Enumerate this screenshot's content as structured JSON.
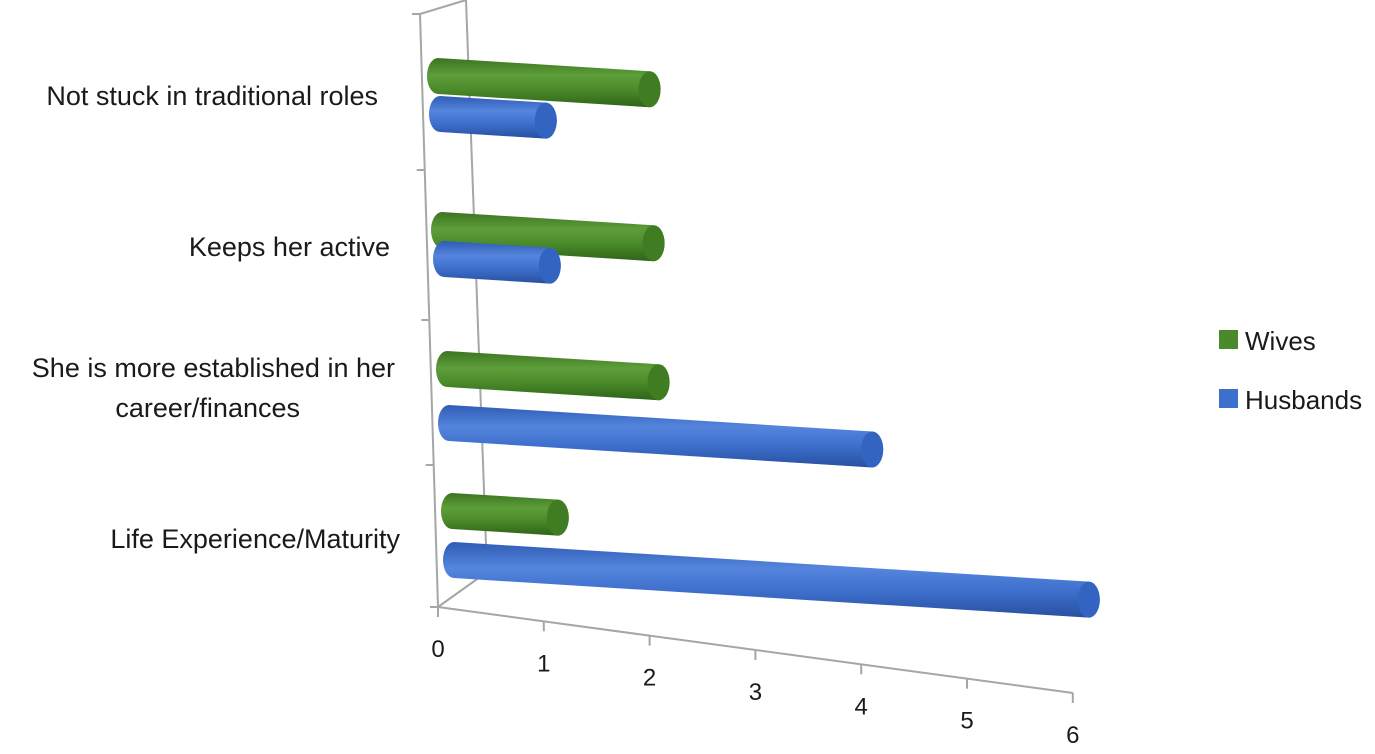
{
  "chart_data": {
    "type": "bar",
    "orientation": "horizontal",
    "style": "3d-cylinder",
    "title": "",
    "xlabel": "",
    "ylabel": "",
    "categories": [
      "Not stuck in traditional roles",
      "Keeps her active",
      "She is more established in her career/finances",
      "Life Experience/Maturity"
    ],
    "category_lines": [
      [
        "Not stuck in traditional roles"
      ],
      [
        "Keeps her active"
      ],
      [
        "She is more established in her",
        "career/finances"
      ],
      [
        "Life Experience/Maturity"
      ]
    ],
    "series": [
      {
        "name": "Wives",
        "color": "#4a8a2a",
        "values": [
          2,
          2,
          2,
          1
        ]
      },
      {
        "name": "Husbands",
        "color": "#3d6fcc",
        "values": [
          1,
          1,
          4,
          6
        ]
      }
    ],
    "xlim": [
      0,
      6
    ],
    "x_ticks": [
      "0",
      "1",
      "2",
      "3",
      "4",
      "5",
      "6"
    ],
    "grid": false,
    "legend_position": "right"
  }
}
